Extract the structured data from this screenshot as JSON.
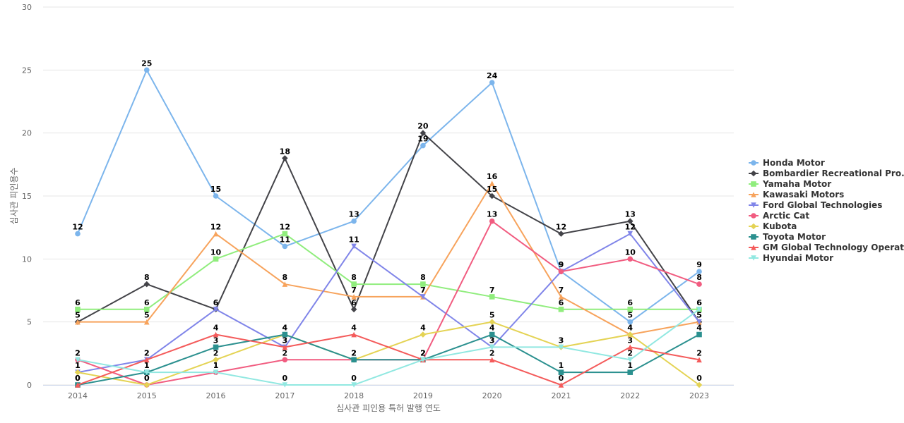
{
  "chart_data": {
    "type": "line",
    "title": "",
    "xlabel": "심사관 피인용 특허 발행 연도",
    "ylabel": "심사관 피인용수",
    "ylim": [
      0,
      30
    ],
    "yticks": [
      0,
      5,
      10,
      15,
      20,
      25,
      30
    ],
    "categories": [
      "2014",
      "2015",
      "2016",
      "2017",
      "2018",
      "2019",
      "2020",
      "2021",
      "2022",
      "2023"
    ],
    "grid": true,
    "legend_position": "right",
    "series": [
      {
        "name": "Honda Motor",
        "color": "#7cb5ec",
        "marker": "circle",
        "values": [
          12,
          25,
          15,
          11,
          13,
          19,
          24,
          9,
          5,
          9
        ]
      },
      {
        "name": "Bombardier Recreational Pro...",
        "color": "#434348",
        "marker": "diamond",
        "values": [
          5,
          8,
          6,
          18,
          6,
          20,
          15,
          12,
          13,
          5
        ]
      },
      {
        "name": "Yamaha Motor",
        "color": "#90ed7d",
        "marker": "square",
        "values": [
          6,
          6,
          10,
          12,
          8,
          8,
          7,
          6,
          6,
          6
        ]
      },
      {
        "name": "Kawasaki Motors",
        "color": "#f7a35c",
        "marker": "triangle",
        "values": [
          5,
          5,
          12,
          8,
          7,
          7,
          16,
          7,
          4,
          5
        ]
      },
      {
        "name": "Ford Global Technologies",
        "color": "#8085e9",
        "marker": "triangle-down",
        "values": [
          1,
          2,
          6,
          3,
          11,
          7,
          3,
          9,
          12,
          5
        ]
      },
      {
        "name": "Arctic Cat",
        "color": "#f15c80",
        "marker": "circle",
        "values": [
          2,
          0,
          1,
          2,
          2,
          2,
          13,
          9,
          10,
          8
        ]
      },
      {
        "name": "Kubota",
        "color": "#e4d354",
        "marker": "diamond",
        "values": [
          1,
          0,
          2,
          4,
          2,
          4,
          5,
          3,
          4,
          0
        ]
      },
      {
        "name": "Toyota Motor",
        "color": "#2b908f",
        "marker": "square",
        "values": [
          0,
          1,
          3,
          4,
          2,
          2,
          4,
          1,
          1,
          4
        ]
      },
      {
        "name": "GM Global Technology Operat...",
        "color": "#f45b5b",
        "marker": "triangle",
        "values": [
          0,
          2,
          4,
          3,
          4,
          2,
          2,
          0,
          3,
          2
        ]
      },
      {
        "name": "Hyundai Motor",
        "color": "#91e8e1",
        "marker": "triangle-down",
        "values": [
          2,
          1,
          1,
          0,
          0,
          2,
          3,
          3,
          2,
          6
        ]
      }
    ]
  }
}
